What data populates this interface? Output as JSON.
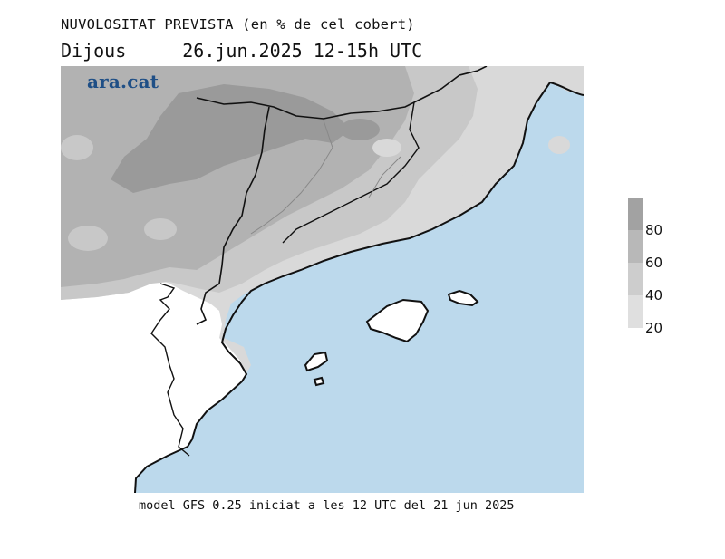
{
  "header": {
    "title": "NUVOLOSITAT PREVISTA (en % de cel cobert)",
    "day": "Dijous",
    "date_time": "26.jun.2025 12-15h UTC"
  },
  "brand": {
    "name": "ara.cat",
    "color": "#1f4f86"
  },
  "legend": {
    "ticks": [
      "80",
      "60",
      "40",
      "20"
    ],
    "colors": [
      "#a2a2a2",
      "#b8b8b8",
      "#cdcdcd",
      "#dfdfdf"
    ]
  },
  "map": {
    "region": "Catalonia and Balearic Islands",
    "sea_color": "#bcd9ec",
    "land_color": "#ffffff",
    "cloud_colors": [
      "#9a9a9a",
      "#b2b2b2",
      "#c8c8c8",
      "#d9d9d9"
    ]
  },
  "footer": {
    "model_text": "model GFS 0.25 iniciat a les 12 UTC del 21 jun 2025"
  }
}
